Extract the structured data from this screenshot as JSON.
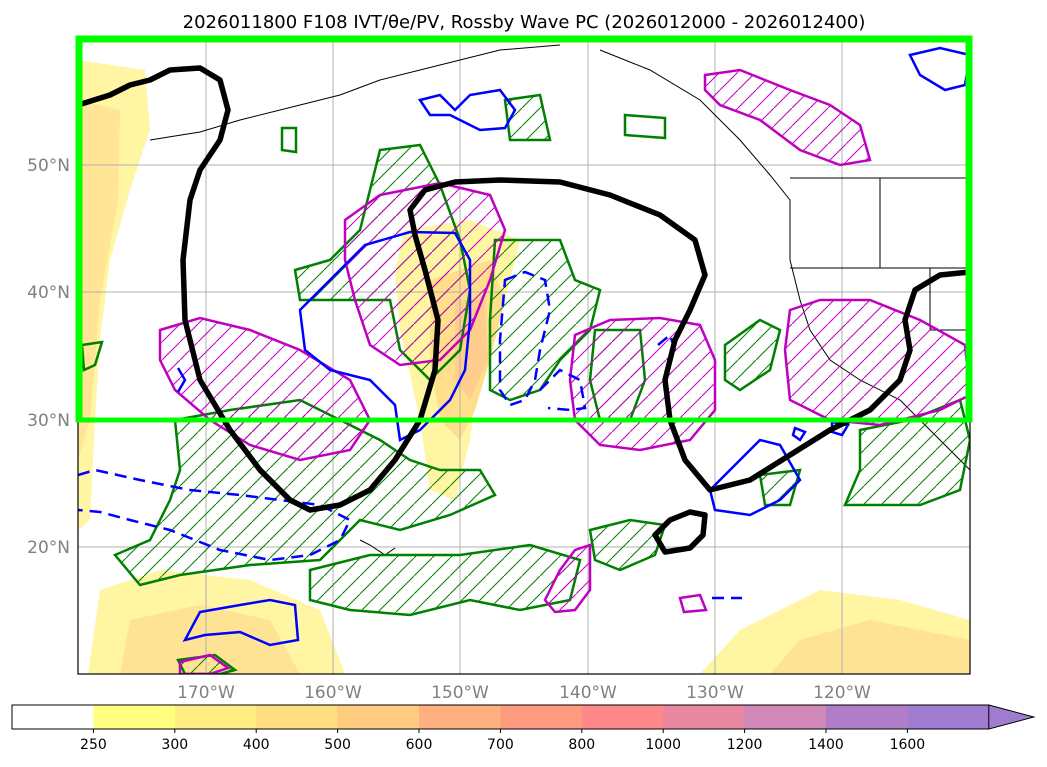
{
  "title": "2026011800 F108 IVT/θe/PV, Rossby Wave PC (2026012000 - 2026012400)",
  "map": {
    "lon_labels": [
      "170°W",
      "160°W",
      "150°W",
      "140°W",
      "130°W",
      "120°W"
    ],
    "lat_labels": [
      "50°N",
      "40°N",
      "30°N",
      "20°N"
    ],
    "box_color": "#00ff00",
    "contour_colors": {
      "pv": "#000000",
      "green": "#008000",
      "magenta": "#c000c0",
      "blue": "#0000ff"
    }
  },
  "colorbar": {
    "ticks": [
      "250",
      "300",
      "400",
      "500",
      "600",
      "700",
      "800",
      "1000",
      "1200",
      "1400",
      "1600"
    ],
    "colors": [
      "#ffffff",
      "#ffff80",
      "#ffee80",
      "#ffdd80",
      "#ffcc80",
      "#ffb080",
      "#ff9c80",
      "#ff8888",
      "#e888a0",
      "#d088b8",
      "#b07ec8",
      "#a07cd0"
    ],
    "extend": "max"
  }
}
